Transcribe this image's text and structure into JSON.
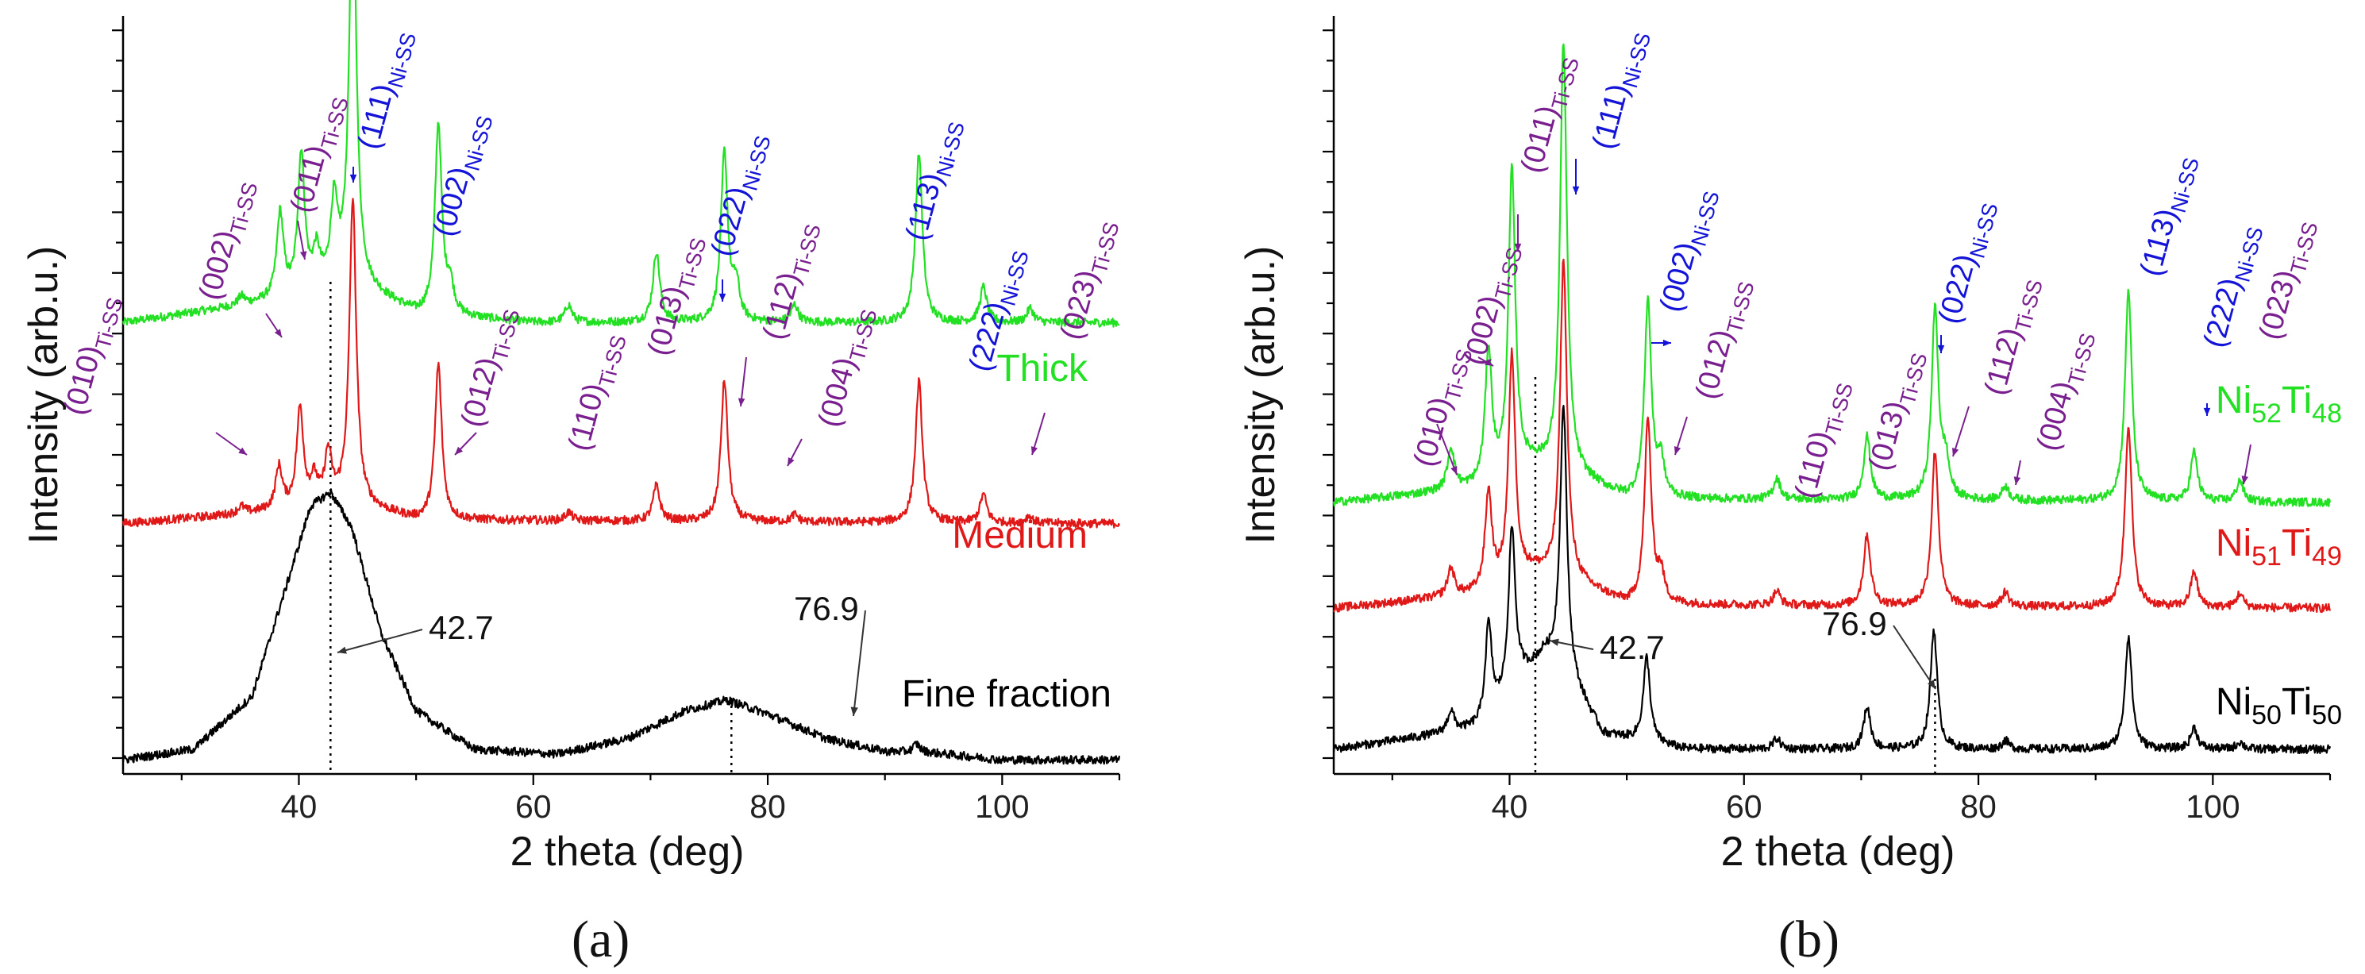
{
  "chart_data": [
    {
      "panel": "(a)",
      "type": "line",
      "xlabel": "2 theta (deg)",
      "ylabel": "Intensity (arb.u.)",
      "xlim": [
        25,
        110
      ],
      "xticks": [
        40,
        60,
        80,
        100
      ],
      "colors": {
        "Thick": "#22e022",
        "Medium": "#e01818",
        "Fine fraction": "#000000",
        "ti": "#7a1f8f",
        "ni": "#1414d8"
      },
      "series": [
        {
          "name": "Thick",
          "color": "#22e022",
          "baseline": 0.64,
          "background": [
            [
              25,
              0.0
            ],
            [
              40,
              0.035
            ],
            [
              44,
              0.06
            ],
            [
              50,
              0.012
            ],
            [
              60,
              0.0
            ],
            [
              110,
              0.0
            ]
          ],
          "peaks": [
            [
              35.1,
              0.012
            ],
            [
              38.4,
              0.12
            ],
            [
              40.2,
              0.2
            ],
            [
              41.5,
              0.05
            ],
            [
              43.0,
              0.11
            ],
            [
              44.6,
              0.59
            ],
            [
              51.9,
              0.27
            ],
            [
              52.9,
              0.04
            ],
            [
              63.0,
              0.025
            ],
            [
              70.5,
              0.1
            ],
            [
              76.3,
              0.24
            ],
            [
              77.3,
              0.05
            ],
            [
              82.3,
              0.025
            ],
            [
              92.9,
              0.24
            ],
            [
              98.4,
              0.05
            ],
            [
              102.4,
              0.02
            ]
          ]
        },
        {
          "name": "Medium",
          "color": "#e01818",
          "baseline": 0.355,
          "background": [
            [
              25,
              0.0
            ],
            [
              40,
              0.02
            ],
            [
              44,
              0.03
            ],
            [
              50,
              0.005
            ],
            [
              110,
              0.0
            ]
          ],
          "peaks": [
            [
              35.1,
              0.01
            ],
            [
              38.3,
              0.06
            ],
            [
              40.1,
              0.14
            ],
            [
              41.3,
              0.035
            ],
            [
              42.5,
              0.07
            ],
            [
              44.6,
              0.43
            ],
            [
              51.9,
              0.22
            ],
            [
              63.0,
              0.012
            ],
            [
              70.5,
              0.05
            ],
            [
              76.3,
              0.2
            ],
            [
              82.3,
              0.01
            ],
            [
              92.9,
              0.2
            ],
            [
              98.4,
              0.04
            ],
            [
              102.3,
              0.01
            ]
          ]
        },
        {
          "name": "Fine fraction",
          "color": "#000000",
          "baseline": 0.02,
          "background": [
            [
              25,
              0.0
            ],
            [
              31,
              0.015
            ],
            [
              36,
              0.09
            ],
            [
              39,
              0.25
            ],
            [
              41,
              0.36
            ],
            [
              42.7,
              0.38
            ],
            [
              44.5,
              0.33
            ],
            [
              47,
              0.18
            ],
            [
              50,
              0.07
            ],
            [
              55,
              0.015
            ],
            [
              62,
              0.008
            ],
            [
              68,
              0.03
            ],
            [
              73,
              0.07
            ],
            [
              76.5,
              0.085
            ],
            [
              80,
              0.065
            ],
            [
              85,
              0.03
            ],
            [
              90,
              0.012
            ],
            [
              94,
              0.01
            ],
            [
              100,
              0.0
            ],
            [
              110,
              0.0
            ]
          ],
          "peaks": [
            [
              92.7,
              0.012
            ]
          ]
        }
      ],
      "series_labels": [
        "Thick",
        "Medium",
        "Fine fraction"
      ],
      "peak_labels": [
        {
          "x": 35.1,
          "text": "(010)",
          "sub": "Ti-SS",
          "phase": "ti"
        },
        {
          "x": 38.4,
          "text": "(002)",
          "sub": "Ti-SS",
          "phase": "ti"
        },
        {
          "x": 40.2,
          "text": "(011)",
          "sub": "Ti-SS",
          "phase": "ti"
        },
        {
          "x": 44.6,
          "text": "(111)",
          "sub": "Ni-SS",
          "phase": "ni"
        },
        {
          "x": 51.9,
          "text": "(002)",
          "sub": "Ni-SS",
          "phase": "ni"
        },
        {
          "x": 52.9,
          "text": "(012)",
          "sub": "Ti-SS",
          "phase": "ti"
        },
        {
          "x": 63.0,
          "text": "(110)",
          "sub": "Ti-SS",
          "phase": "ti"
        },
        {
          "x": 70.5,
          "text": "(013)",
          "sub": "Ti-SS",
          "phase": "ti"
        },
        {
          "x": 76.3,
          "text": "(022)",
          "sub": "Ni-SS",
          "phase": "ni"
        },
        {
          "x": 77.3,
          "text": "(112)",
          "sub": "Ti-SS",
          "phase": "ti"
        },
        {
          "x": 82.3,
          "text": "(004)",
          "sub": "Ti-SS",
          "phase": "ti"
        },
        {
          "x": 92.9,
          "text": "(113)",
          "sub": "Ni-SS",
          "phase": "ni"
        },
        {
          "x": 98.4,
          "text": "(222)",
          "sub": "Ni-SS",
          "phase": "ni"
        },
        {
          "x": 102.4,
          "text": "(023)",
          "sub": "Ti-SS",
          "phase": "ti"
        }
      ],
      "annotations": [
        {
          "text": "42.7",
          "x": 42.7
        },
        {
          "text": "76.9",
          "x": 76.9
        }
      ]
    },
    {
      "panel": "(b)",
      "type": "line",
      "xlabel": "2 theta (deg)",
      "ylabel": "Intensity (arb.u.)",
      "xlim": [
        25,
        110
      ],
      "xticks": [
        40,
        60,
        80,
        100
      ],
      "colors": {
        "Ni52Ti48": "#22e022",
        "Ni51Ti49": "#e01818",
        "Ni50Ti50": "#000000",
        "ti": "#7a1f8f",
        "ni": "#1414d8"
      },
      "series": [
        {
          "name": "Ni52Ti48",
          "color": "#22e022",
          "baseline": 0.385,
          "background": [
            [
              25,
              0.0
            ],
            [
              38,
              0.02
            ],
            [
              42,
              0.05
            ],
            [
              45,
              0.04
            ],
            [
              50,
              0.005
            ],
            [
              110,
              0.0
            ]
          ],
          "peaks": [
            [
              35.0,
              0.06
            ],
            [
              38.2,
              0.19
            ],
            [
              40.2,
              0.43
            ],
            [
              44.6,
              0.61
            ],
            [
              51.8,
              0.28
            ],
            [
              52.9,
              0.05
            ],
            [
              62.8,
              0.03
            ],
            [
              70.5,
              0.09
            ],
            [
              76.3,
              0.27
            ],
            [
              77.2,
              0.05
            ],
            [
              82.3,
              0.02
            ],
            [
              92.8,
              0.3
            ],
            [
              98.4,
              0.07
            ],
            [
              102.3,
              0.03
            ]
          ]
        },
        {
          "name": "Ni51Ti49",
          "color": "#e01818",
          "baseline": 0.235,
          "background": [
            [
              25,
              0.0
            ],
            [
              38,
              0.02
            ],
            [
              42,
              0.05
            ],
            [
              45,
              0.04
            ],
            [
              50,
              0.005
            ],
            [
              110,
              0.0
            ]
          ],
          "peaks": [
            [
              35.0,
              0.04
            ],
            [
              38.2,
              0.14
            ],
            [
              40.2,
              0.32
            ],
            [
              44.6,
              0.45
            ],
            [
              51.8,
              0.26
            ],
            [
              52.9,
              0.04
            ],
            [
              62.8,
              0.02
            ],
            [
              70.5,
              0.1
            ],
            [
              76.3,
              0.22
            ],
            [
              82.3,
              0.02
            ],
            [
              92.8,
              0.26
            ],
            [
              98.4,
              0.05
            ],
            [
              102.3,
              0.02
            ]
          ]
        },
        {
          "name": "Ni50Ti50",
          "color": "#000000",
          "baseline": 0.035,
          "background": [
            [
              25,
              0.0
            ],
            [
              38,
              0.03
            ],
            [
              41,
              0.1
            ],
            [
              43,
              0.13
            ],
            [
              45,
              0.1
            ],
            [
              48,
              0.02
            ],
            [
              55,
              0.0
            ],
            [
              110,
              0.0
            ]
          ],
          "peaks": [
            [
              35.0,
              0.03
            ],
            [
              38.2,
              0.14
            ],
            [
              40.2,
              0.23
            ],
            [
              44.6,
              0.38
            ],
            [
              51.7,
              0.12
            ],
            [
              62.8,
              0.015
            ],
            [
              70.5,
              0.06
            ],
            [
              76.2,
              0.17
            ],
            [
              82.3,
              0.012
            ],
            [
              92.8,
              0.16
            ],
            [
              98.4,
              0.03
            ],
            [
              102.3,
              0.01
            ]
          ]
        }
      ],
      "series_labels": [
        {
          "base": "Ni",
          "n1": "52",
          "mid": "Ti",
          "n2": "48"
        },
        {
          "base": "Ni",
          "n1": "51",
          "mid": "Ti",
          "n2": "49"
        },
        {
          "base": "Ni",
          "n1": "50",
          "mid": "Ti",
          "n2": "50"
        }
      ],
      "peak_labels": [
        {
          "x": 35.0,
          "text": "(010)",
          "sub": "Ti-SS",
          "phase": "ti"
        },
        {
          "x": 38.2,
          "text": "(002)",
          "sub": "Ti-SS",
          "phase": "ti"
        },
        {
          "x": 40.2,
          "text": "(011)",
          "sub": "Ti-SS",
          "phase": "ti"
        },
        {
          "x": 44.6,
          "text": "(111)",
          "sub": "Ni-SS",
          "phase": "ni"
        },
        {
          "x": 51.8,
          "text": "(002)",
          "sub": "Ni-SS",
          "phase": "ni"
        },
        {
          "x": 52.9,
          "text": "(012)",
          "sub": "Ti-SS",
          "phase": "ti"
        },
        {
          "x": 62.8,
          "text": "(110)",
          "sub": "Ti-SS",
          "phase": "ti"
        },
        {
          "x": 70.5,
          "text": "(013)",
          "sub": "Ti-SS",
          "phase": "ti"
        },
        {
          "x": 76.3,
          "text": "(022)",
          "sub": "Ni-SS",
          "phase": "ni"
        },
        {
          "x": 77.2,
          "text": "(112)",
          "sub": "Ti-SS",
          "phase": "ti"
        },
        {
          "x": 82.3,
          "text": "(004)",
          "sub": "Ti-SS",
          "phase": "ti"
        },
        {
          "x": 92.8,
          "text": "(113)",
          "sub": "Ni-SS",
          "phase": "ni"
        },
        {
          "x": 98.4,
          "text": "(222)",
          "sub": "Ni-SS",
          "phase": "ni"
        },
        {
          "x": 102.3,
          "text": "(023)",
          "sub": "Ti-SS",
          "phase": "ti"
        }
      ],
      "annotations": [
        {
          "text": "42.7",
          "x": 42.2
        },
        {
          "text": "76.9",
          "x": 76.3
        }
      ]
    }
  ]
}
